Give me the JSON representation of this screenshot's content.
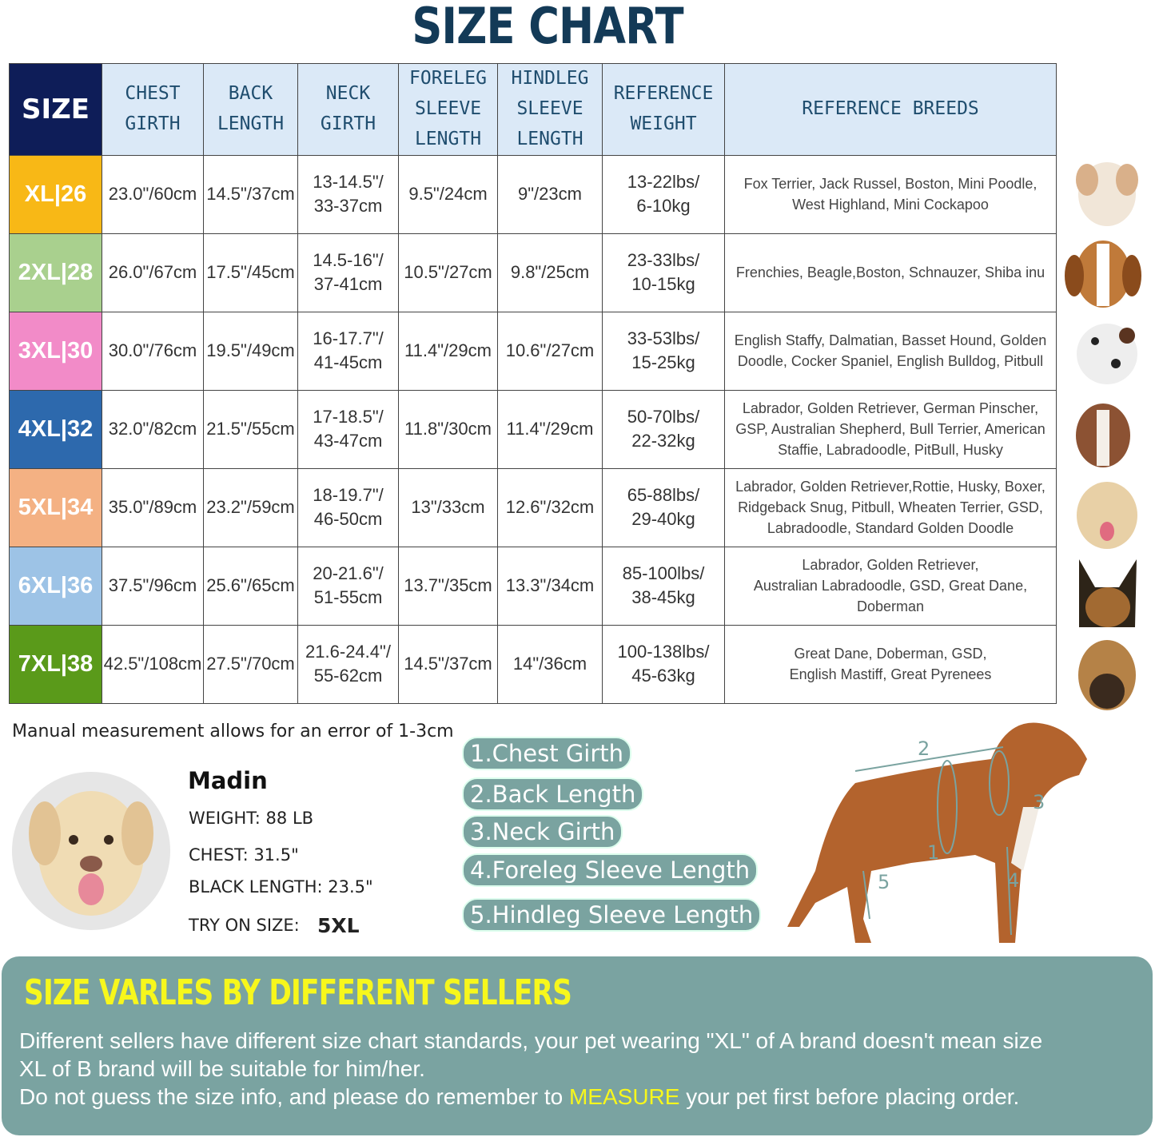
{
  "title": "SIZE CHART",
  "table": {
    "header": [
      "SIZE",
      "CHEST\nGIRTH",
      "BACK\nLENGTH",
      "NECK\nGIRTH",
      "FORELEG\nSLEEVE\nLENGTH",
      "HINDLEG\nSLEEVE\nLENGTH",
      "REFERENCE\nWEIGHT",
      "REFERENCE BREEDS"
    ],
    "rows": [
      [
        "XL|26",
        "23.0\"/60cm",
        "14.5\"/37cm",
        "13-14.5\"/\n33-37cm",
        "9.5\"/24cm",
        "9\"/23cm",
        "13-22lbs/\n6-10kg",
        "Fox Terrier, Jack Russel, Boston, Mini Poodle,\nWest Highland, Mini Cockapoo"
      ],
      [
        "2XL|28",
        "26.0\"/67cm",
        "17.5\"/45cm",
        "14.5-16\"/\n37-41cm",
        "10.5\"/27cm",
        "9.8\"/25cm",
        "23-33lbs/\n10-15kg",
        "Frenchies, Beagle,Boston, Schnauzer, Shiba inu"
      ],
      [
        "3XL|30",
        "30.0\"/76cm",
        "19.5\"/49cm",
        "16-17.7\"/\n41-45cm",
        "11.4\"/29cm",
        "10.6\"/27cm",
        "33-53lbs/\n15-25kg",
        "English Staffy, Dalmatian, Basset Hound, Golden\nDoodle, Cocker Spaniel, English Bulldog, Pitbull"
      ],
      [
        "4XL|32",
        "32.0\"/82cm",
        "21.5\"/55cm",
        "17-18.5\"/\n43-47cm",
        "11.8\"/30cm",
        "11.4\"/29cm",
        "50-70lbs/\n22-32kg",
        "Labrador, Golden Retriever, German Pinscher,\nGSP, Australian Shepherd, Bull Terrier, American\nStaffie, Labradoodle, PitBull, Husky"
      ],
      [
        "5XL|34",
        "35.0\"/89cm",
        "23.2\"/59cm",
        "18-19.7\"/\n46-50cm",
        "13\"/33cm",
        "12.6\"/32cm",
        "65-88lbs/\n29-40kg",
        "Labrador, Golden Retriever,Rottie, Husky, Boxer,\nRidgeback Snug, Pitbull, Wheaten Terrier, GSD,\nLabradoodle,  Standard Golden Doodle"
      ],
      [
        "6XL|36",
        "37.5\"/96cm",
        "25.6\"/65cm",
        "20-21.6\"/\n51-55cm",
        "13.7\"/35cm",
        "13.3\"/34cm",
        "85-100lbs/\n38-45kg",
        "Labrador, Golden Retriever,\nAustralian Labradoodle, GSD, Great Dane,\nDoberman"
      ],
      [
        "7XL|38",
        "42.5\"/108cm",
        "27.5\"/70cm",
        "21.6-24.4\"/\n55-62cm",
        "14.5\"/37cm",
        "14\"/36cm",
        "100-138lbs/\n45-63kg",
        "Great Dane, Doberman, GSD,\nEnglish Mastiff, Great Pyrenees"
      ]
    ]
  },
  "note": "Manual measurement allows for an error of 1-3cm",
  "example": {
    "name": "Madin",
    "weight": "WEIGHT: 88 LB",
    "chest": "CHEST: 31.5\"",
    "length": "BLACK LENGTH: 23.5\"",
    "try_label": "TRY ON SIZE:",
    "try_size": "5XL"
  },
  "legend": [
    "1.Chest Girth",
    "2.Back Length",
    "3.Neck Girth",
    "4.Foreleg Sleeve Length",
    "5.Hindleg Sleeve Length"
  ],
  "diagram": {
    "labels": [
      "1",
      "2",
      "3",
      "4",
      "5"
    ]
  },
  "banner": {
    "title": "SIZE VARLES BY DIFFERENT SELLERS",
    "text1": "Different sellers have different size chart standards, your pet wearing \"XL\" of A brand doesn't mean size\n XL of B brand will be suitable for him/her.",
    "text2": "Do not guess the size info, and please do remember to ",
    "highlight": "MEASURE",
    "text3": " your pet first before placing order."
  }
}
